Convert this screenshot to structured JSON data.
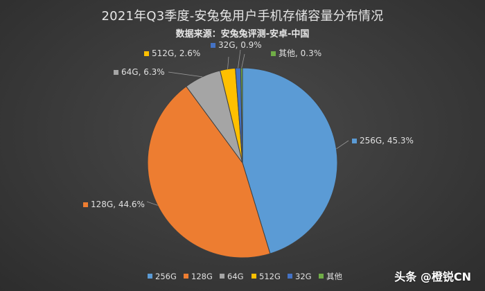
{
  "chart_data": {
    "type": "pie",
    "title": "2021年Q3季度-安兔兔用户手机存储容量分布情况",
    "subtitle": "数据来源：安兔兔评测-安卓-中国",
    "slices": [
      {
        "name": "256G",
        "value": 45.3,
        "label": "256G, 45.3%",
        "color": "#5b9bd5"
      },
      {
        "name": "128G",
        "value": 44.6,
        "label": "128G, 44.6%",
        "color": "#ed7d31"
      },
      {
        "name": "64G",
        "value": 6.3,
        "label": "64G, 6.3%",
        "color": "#a5a5a5"
      },
      {
        "name": "512G",
        "value": 2.6,
        "label": "512G, 2.6%",
        "color": "#ffc000"
      },
      {
        "name": "32G",
        "value": 0.9,
        "label": "32G, 0.9%",
        "color": "#4472c4"
      },
      {
        "name": "其他",
        "value": 0.3,
        "label": "其他, 0.3%",
        "color": "#70ad47"
      }
    ],
    "legend_position": "bottom"
  },
  "watermark": "头条 @橙锐CN"
}
